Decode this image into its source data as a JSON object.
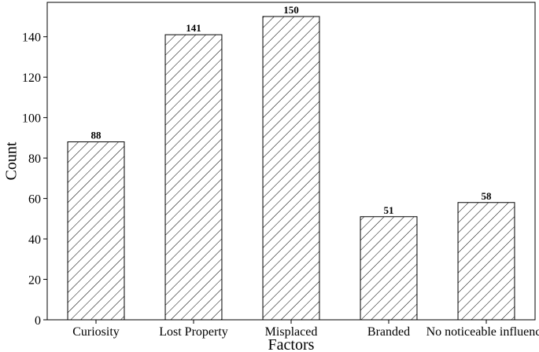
{
  "chart_data": {
    "type": "bar",
    "title": "",
    "xlabel": "Factors",
    "ylabel": "Count",
    "categories": [
      "Curiosity",
      "Lost Property",
      "Misplaced",
      "Branded",
      "No noticeable influence"
    ],
    "values": [
      88,
      141,
      150,
      51,
      58
    ],
    "data_labels": [
      "88",
      "141",
      "150",
      "51",
      "58"
    ],
    "ylim": [
      0,
      157
    ],
    "yticks": [
      0,
      20,
      40,
      60,
      80,
      100,
      120,
      140
    ],
    "grid": false,
    "legend": "none",
    "bar_fill": "hatched",
    "colors": {
      "bar_edge": "#000000",
      "hatch": "#000000",
      "background": "#ffffff"
    }
  }
}
